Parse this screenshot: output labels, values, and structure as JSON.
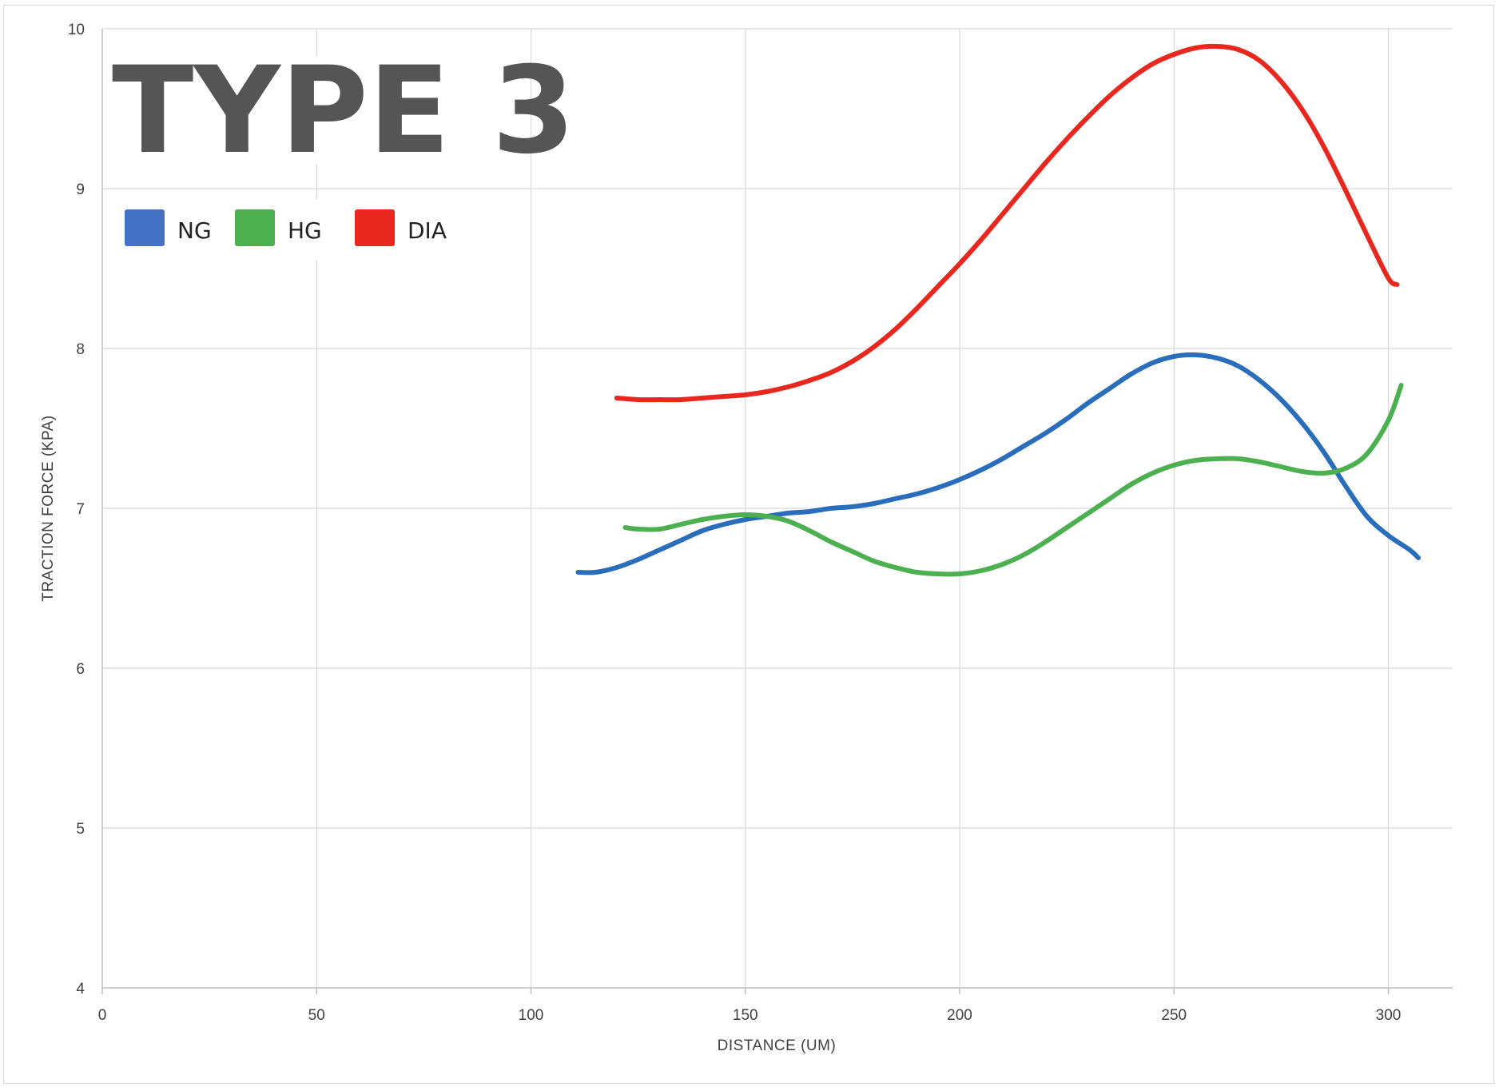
{
  "chart_data": {
    "type": "line",
    "title": "TYPE 3",
    "xlabel": "DISTANCE (UM)",
    "ylabel": "TRACTION FORCE (KPA)",
    "xlim": [
      0,
      315
    ],
    "ylim": [
      4,
      10
    ],
    "xticks": [
      0,
      50,
      100,
      150,
      200,
      250,
      300
    ],
    "yticks": [
      4,
      5,
      6,
      7,
      8,
      9,
      10
    ],
    "grid": true,
    "legend_position": "top-left",
    "series": [
      {
        "name": "NG",
        "color": "#2a6ebb",
        "x": [
          111,
          115,
          120,
          125,
          130,
          135,
          140,
          145,
          150,
          155,
          160,
          165,
          170,
          175,
          180,
          185,
          190,
          195,
          200,
          205,
          210,
          215,
          220,
          225,
          230,
          235,
          240,
          245,
          250,
          255,
          260,
          265,
          270,
          275,
          280,
          285,
          290,
          295,
          300,
          305,
          307
        ],
        "y": [
          6.6,
          6.6,
          6.63,
          6.68,
          6.74,
          6.8,
          6.86,
          6.9,
          6.93,
          6.95,
          6.97,
          6.98,
          7.0,
          7.01,
          7.03,
          7.06,
          7.09,
          7.13,
          7.18,
          7.24,
          7.31,
          7.39,
          7.47,
          7.56,
          7.66,
          7.75,
          7.84,
          7.91,
          7.95,
          7.96,
          7.94,
          7.89,
          7.8,
          7.68,
          7.53,
          7.35,
          7.14,
          6.95,
          6.83,
          6.74,
          6.69
        ]
      },
      {
        "name": "HG",
        "color": "#4caf50",
        "x": [
          122,
          125,
          130,
          135,
          140,
          145,
          150,
          155,
          160,
          165,
          170,
          175,
          180,
          185,
          190,
          195,
          200,
          205,
          210,
          215,
          220,
          225,
          230,
          235,
          240,
          245,
          250,
          255,
          260,
          265,
          270,
          275,
          280,
          285,
          290,
          295,
          300,
          303
        ],
        "y": [
          6.88,
          6.87,
          6.87,
          6.9,
          6.93,
          6.95,
          6.96,
          6.95,
          6.92,
          6.86,
          6.79,
          6.73,
          6.67,
          6.63,
          6.6,
          6.59,
          6.59,
          6.61,
          6.65,
          6.71,
          6.79,
          6.88,
          6.97,
          7.06,
          7.15,
          7.22,
          7.27,
          7.3,
          7.31,
          7.31,
          7.29,
          7.26,
          7.23,
          7.22,
          7.25,
          7.34,
          7.55,
          7.77
        ]
      },
      {
        "name": "DIA",
        "color": "#e8281e",
        "x": [
          120,
          125,
          130,
          135,
          140,
          145,
          150,
          155,
          160,
          165,
          170,
          175,
          180,
          185,
          190,
          195,
          200,
          205,
          210,
          215,
          220,
          225,
          230,
          235,
          240,
          245,
          250,
          255,
          260,
          265,
          270,
          275,
          280,
          285,
          290,
          295,
          300,
          302
        ],
        "y": [
          7.69,
          7.68,
          7.68,
          7.68,
          7.69,
          7.7,
          7.71,
          7.73,
          7.76,
          7.8,
          7.85,
          7.92,
          8.01,
          8.12,
          8.25,
          8.39,
          8.53,
          8.68,
          8.84,
          9.0,
          9.16,
          9.31,
          9.45,
          9.58,
          9.69,
          9.78,
          9.84,
          9.88,
          9.89,
          9.87,
          9.8,
          9.67,
          9.49,
          9.26,
          8.99,
          8.71,
          8.44,
          8.4
        ]
      }
    ]
  }
}
